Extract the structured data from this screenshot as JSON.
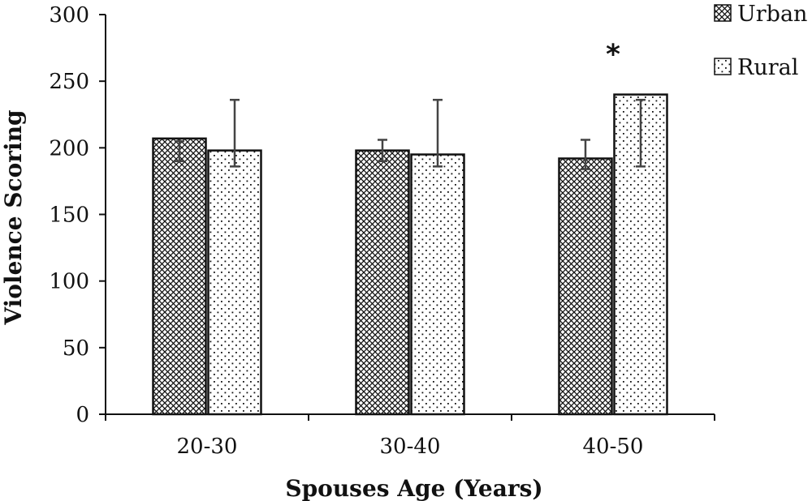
{
  "chart_data": {
    "type": "bar",
    "title": "",
    "xlabel": "Spouses Age (Years)",
    "ylabel": "Violence Scoring",
    "categories": [
      "20-30",
      "30-40",
      "40-50"
    ],
    "ylim": [
      0,
      300
    ],
    "yticks": [
      0,
      50,
      100,
      150,
      200,
      250,
      300
    ],
    "grid": false,
    "legend_position": "top-right",
    "series": [
      {
        "name": "Urban",
        "pattern": "crosshatch",
        "values": [
          207,
          198,
          192
        ],
        "error_low": [
          190,
          190,
          184
        ],
        "error_high": [
          205,
          206,
          206
        ]
      },
      {
        "name": "Rural",
        "pattern": "dots",
        "values": [
          198,
          195,
          240
        ],
        "error_low": [
          186,
          186,
          186
        ],
        "error_high": [
          236,
          236,
          236
        ]
      }
    ],
    "annotations": [
      {
        "text": "*",
        "category": "40-50"
      }
    ]
  },
  "colors": {
    "bar_edge": "#111111",
    "error_bar": "#444444",
    "background": "#ffffff"
  }
}
